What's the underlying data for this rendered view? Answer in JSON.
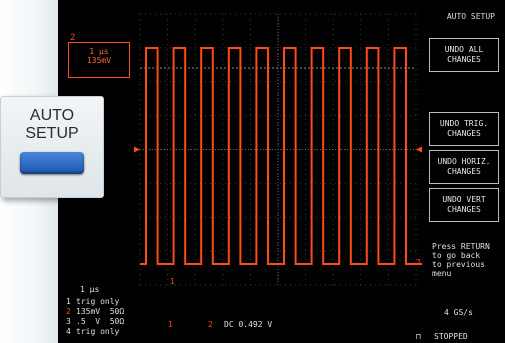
{
  "front_panel": {
    "button_label": "AUTO\nSETUP",
    "button_color": "#2f6bc9"
  },
  "screen": {
    "menu_title": "AUTO SETUP",
    "softkeys": [
      {
        "label": "UNDO ALL\nCHANGES"
      },
      {
        "label": "UNDO TRIG.\nCHANGES"
      },
      {
        "label": "UNDO HORIZ.\nCHANGES"
      },
      {
        "label": "UNDO VERT\nCHANGES"
      }
    ],
    "help_text": "Press RETURN\nto go back\nto previous\nmenu",
    "sample_rate": "4 GS/s",
    "run_status": "STOPPED",
    "channel_box": {
      "marker": "2",
      "text": "1 µs\n135mV"
    },
    "timebase": "1 µs",
    "channel_settings": [
      {
        "ch": "1",
        "text": "trig only"
      },
      {
        "ch": "2",
        "text": "135mV  50Ω"
      },
      {
        "ch": "3",
        "text": ".5  V  50Ω"
      },
      {
        "ch": "4",
        "text": "trig only"
      }
    ],
    "trigger_markers": {
      "ch1": "1",
      "ch2": "2"
    },
    "measurement": "DC 0.492 V",
    "trace_label": "2",
    "top_marker": "2",
    "trace_color": "#ff4a1a"
  }
}
